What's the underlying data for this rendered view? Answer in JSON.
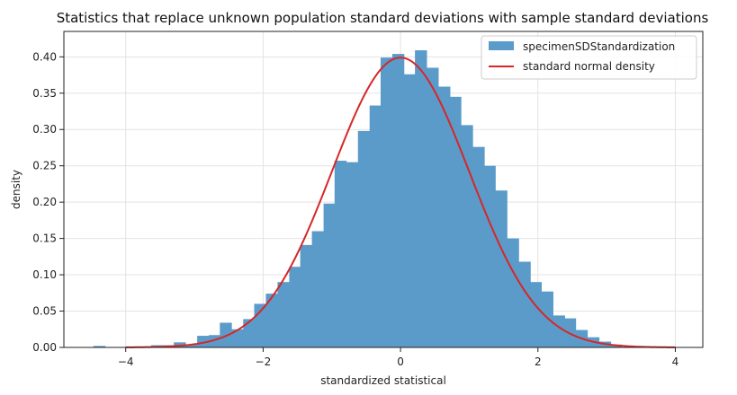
{
  "chart_data": {
    "type": "bar",
    "title": "Statistics that replace unknown population standard deviations with sample standard deviations",
    "xlabel": "standardized statistical",
    "ylabel": "density",
    "xlim": [
      -4.9,
      4.4
    ],
    "ylim": [
      0,
      0.435
    ],
    "xticks": [
      -4,
      -2,
      0,
      2,
      4
    ],
    "xtick_labels": [
      "−4",
      "−2",
      "0",
      "2",
      "4"
    ],
    "yticks": [
      0,
      0.05,
      0.1,
      0.15,
      0.2,
      0.25,
      0.3,
      0.35,
      0.4
    ],
    "ytick_labels": [
      "0.00",
      "0.05",
      "0.10",
      "0.15",
      "0.20",
      "0.25",
      "0.30",
      "0.35",
      "0.40"
    ],
    "grid": true,
    "legend": {
      "placement": "top-right"
    },
    "series": [
      {
        "name": "specimenSDStandardization",
        "kind": "histogram",
        "color": "#5b9bc9",
        "bins": [
          {
            "x0": -4.47,
            "x1": -4.3,
            "value": 0.002
          },
          {
            "x0": -4.3,
            "x1": -4.13,
            "value": 0.0
          },
          {
            "x0": -4.13,
            "x1": -3.96,
            "value": 0.0
          },
          {
            "x0": -3.96,
            "x1": -3.8,
            "value": 0.0
          },
          {
            "x0": -3.8,
            "x1": -3.63,
            "value": 0.0
          },
          {
            "x0": -3.63,
            "x1": -3.46,
            "value": 0.003
          },
          {
            "x0": -3.46,
            "x1": -3.3,
            "value": 0.003
          },
          {
            "x0": -3.3,
            "x1": -3.13,
            "value": 0.007
          },
          {
            "x0": -3.13,
            "x1": -2.96,
            "value": 0.004
          },
          {
            "x0": -2.96,
            "x1": -2.79,
            "value": 0.016
          },
          {
            "x0": -2.79,
            "x1": -2.63,
            "value": 0.017
          },
          {
            "x0": -2.63,
            "x1": -2.46,
            "value": 0.034
          },
          {
            "x0": -2.46,
            "x1": -2.29,
            "value": 0.025
          },
          {
            "x0": -2.29,
            "x1": -2.13,
            "value": 0.039
          },
          {
            "x0": -2.13,
            "x1": -1.96,
            "value": 0.06
          },
          {
            "x0": -1.96,
            "x1": -1.79,
            "value": 0.074
          },
          {
            "x0": -1.79,
            "x1": -1.62,
            "value": 0.09
          },
          {
            "x0": -1.62,
            "x1": -1.46,
            "value": 0.111
          },
          {
            "x0": -1.46,
            "x1": -1.29,
            "value": 0.141
          },
          {
            "x0": -1.29,
            "x1": -1.12,
            "value": 0.16
          },
          {
            "x0": -1.12,
            "x1": -0.96,
            "value": 0.198
          },
          {
            "x0": -0.96,
            "x1": -0.79,
            "value": 0.257
          },
          {
            "x0": -0.79,
            "x1": -0.62,
            "value": 0.255
          },
          {
            "x0": -0.62,
            "x1": -0.45,
            "value": 0.298
          },
          {
            "x0": -0.45,
            "x1": -0.29,
            "value": 0.333
          },
          {
            "x0": -0.29,
            "x1": -0.12,
            "value": 0.399
          },
          {
            "x0": -0.12,
            "x1": 0.05,
            "value": 0.404
          },
          {
            "x0": 0.05,
            "x1": 0.21,
            "value": 0.376
          },
          {
            "x0": 0.21,
            "x1": 0.38,
            "value": 0.409
          },
          {
            "x0": 0.38,
            "x1": 0.55,
            "value": 0.385
          },
          {
            "x0": 0.55,
            "x1": 0.72,
            "value": 0.359
          },
          {
            "x0": 0.72,
            "x1": 0.88,
            "value": 0.345
          },
          {
            "x0": 0.88,
            "x1": 1.05,
            "value": 0.306
          },
          {
            "x0": 1.05,
            "x1": 1.22,
            "value": 0.276
          },
          {
            "x0": 1.22,
            "x1": 1.38,
            "value": 0.25
          },
          {
            "x0": 1.38,
            "x1": 1.55,
            "value": 0.216
          },
          {
            "x0": 1.55,
            "x1": 1.72,
            "value": 0.15
          },
          {
            "x0": 1.72,
            "x1": 1.89,
            "value": 0.118
          },
          {
            "x0": 1.89,
            "x1": 2.05,
            "value": 0.09
          },
          {
            "x0": 2.05,
            "x1": 2.22,
            "value": 0.077
          },
          {
            "x0": 2.22,
            "x1": 2.39,
            "value": 0.044
          },
          {
            "x0": 2.39,
            "x1": 2.55,
            "value": 0.04
          },
          {
            "x0": 2.55,
            "x1": 2.72,
            "value": 0.024
          },
          {
            "x0": 2.72,
            "x1": 2.89,
            "value": 0.014
          },
          {
            "x0": 2.89,
            "x1": 3.06,
            "value": 0.008
          },
          {
            "x0": 3.06,
            "x1": 3.22,
            "value": 0.004
          }
        ]
      },
      {
        "name": "standard normal density",
        "kind": "line",
        "color": "#d62728",
        "x_range": [
          -4,
          4
        ]
      }
    ]
  }
}
